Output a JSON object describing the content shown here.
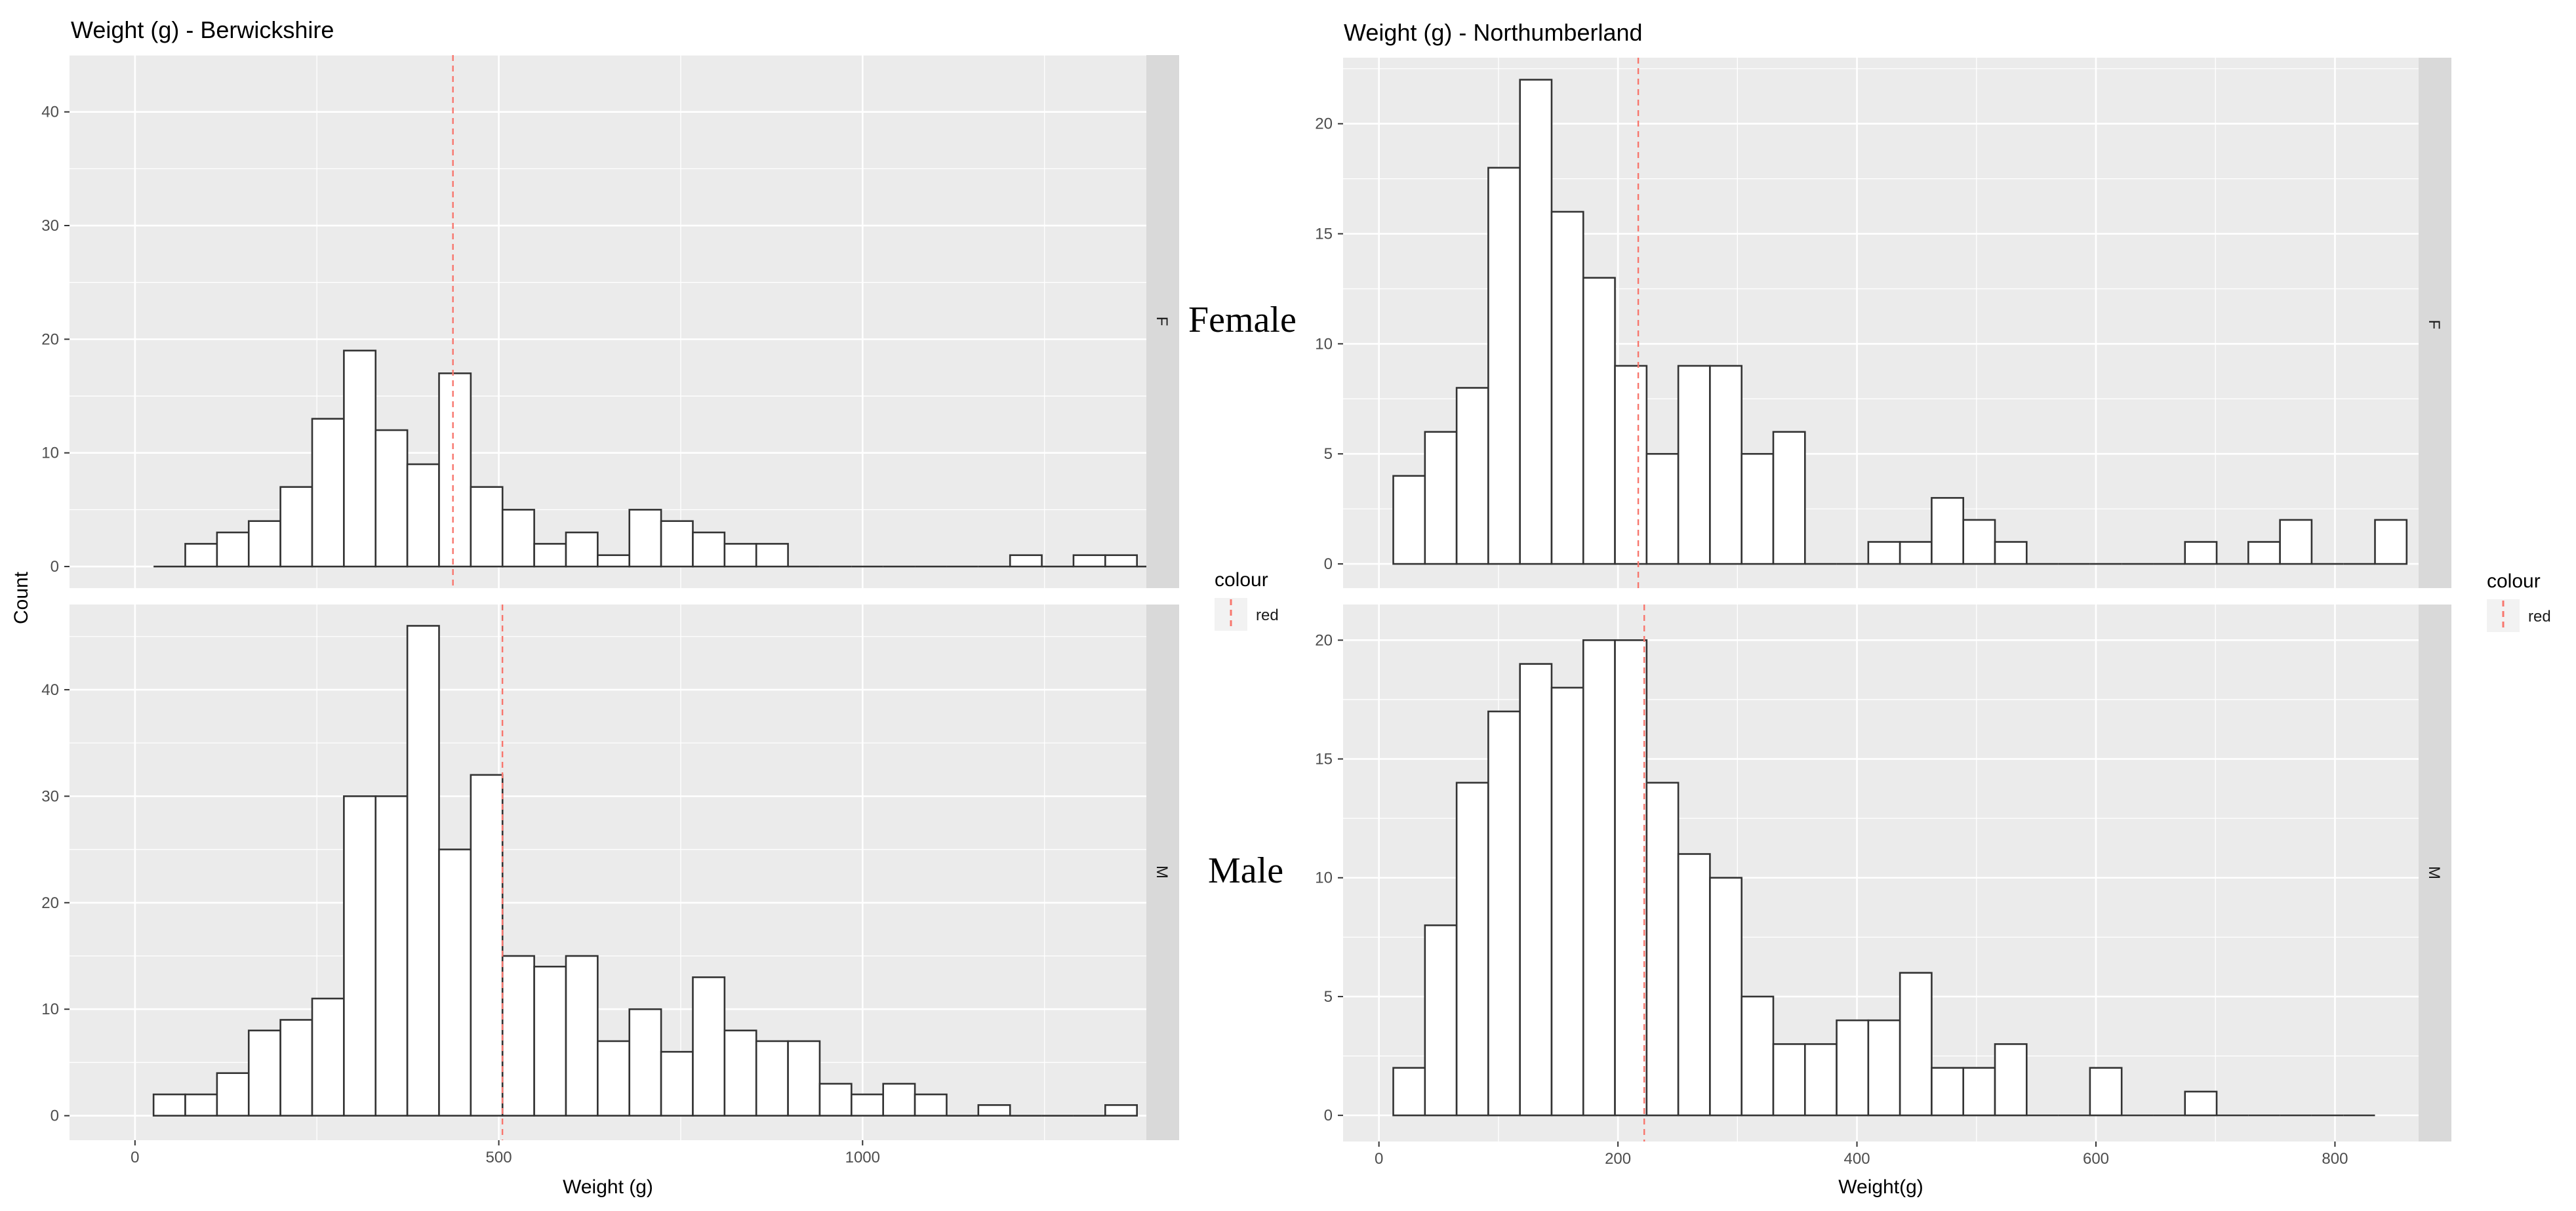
{
  "chart_data": [
    {
      "type": "bar",
      "title": "Weight (g) - Berwickshire",
      "xlabel": "Weight (g)",
      "ylabel": "Count",
      "xlim": [
        -90,
        1390
      ],
      "bin_width": 43.6,
      "first_bin_left": 25.5,
      "xticks": [
        0,
        500,
        1000
      ],
      "xtick_labels": [
        "0",
        "500",
        "1000"
      ],
      "legend": {
        "title": "colour",
        "label": "red",
        "line_color": "#F8766D"
      },
      "panels": [
        {
          "strip": "F",
          "ylim": [
            -1.9,
            45
          ],
          "yticks": [
            0,
            10,
            20,
            30,
            40
          ],
          "counts": [
            0,
            2,
            3,
            4,
            7,
            13,
            19,
            12,
            9,
            17,
            7,
            5,
            2,
            3,
            1,
            5,
            4,
            3,
            2,
            2,
            0,
            0,
            0,
            0,
            0,
            0,
            0,
            1,
            0,
            1,
            1,
            0
          ],
          "mean_line": 437
        },
        {
          "strip": "M",
          "ylim": [
            -2.3,
            48
          ],
          "yticks": [
            0,
            10,
            20,
            30,
            40
          ],
          "counts": [
            2,
            2,
            4,
            8,
            9,
            11,
            30,
            30,
            46,
            25,
            32,
            15,
            14,
            15,
            7,
            10,
            6,
            13,
            8,
            7,
            7,
            3,
            2,
            3,
            2,
            0,
            1,
            0,
            0,
            0,
            1
          ],
          "mean_line": 505
        }
      ]
    },
    {
      "type": "bar",
      "title": "Weight (g) - Northumberland",
      "xlabel": "Weight(g)",
      "ylabel": "",
      "xlim": [
        -30,
        870
      ],
      "bin_width": 26.5,
      "first_bin_left": 12,
      "xticks": [
        0,
        200,
        400,
        600,
        800
      ],
      "xtick_labels": [
        "0",
        "200",
        "400",
        "600",
        "800"
      ],
      "legend": {
        "title": "colour",
        "label": "red",
        "line_color": "#F8766D"
      },
      "panels": [
        {
          "strip": "F",
          "ylim": [
            -1.1,
            23
          ],
          "yticks": [
            0,
            5,
            10,
            15,
            20
          ],
          "counts": [
            4,
            6,
            8,
            18,
            22,
            16,
            13,
            9,
            5,
            9,
            9,
            5,
            6,
            0,
            0,
            1,
            1,
            3,
            2,
            1,
            0,
            0,
            0,
            0,
            0,
            1,
            0,
            1,
            2,
            0,
            0,
            2
          ],
          "mean_line": 217
        },
        {
          "strip": "M",
          "ylim": [
            -1.1,
            21.5
          ],
          "yticks": [
            0,
            5,
            10,
            15,
            20
          ],
          "counts": [
            2,
            8,
            14,
            17,
            19,
            18,
            20,
            20,
            14,
            11,
            10,
            5,
            3,
            3,
            4,
            4,
            6,
            2,
            2,
            3,
            0,
            0,
            2,
            0,
            0,
            1,
            0,
            0,
            0,
            0,
            0
          ],
          "mean_line": 222
        }
      ]
    }
  ],
  "annotations": {
    "female": "Female",
    "male": "Male"
  }
}
